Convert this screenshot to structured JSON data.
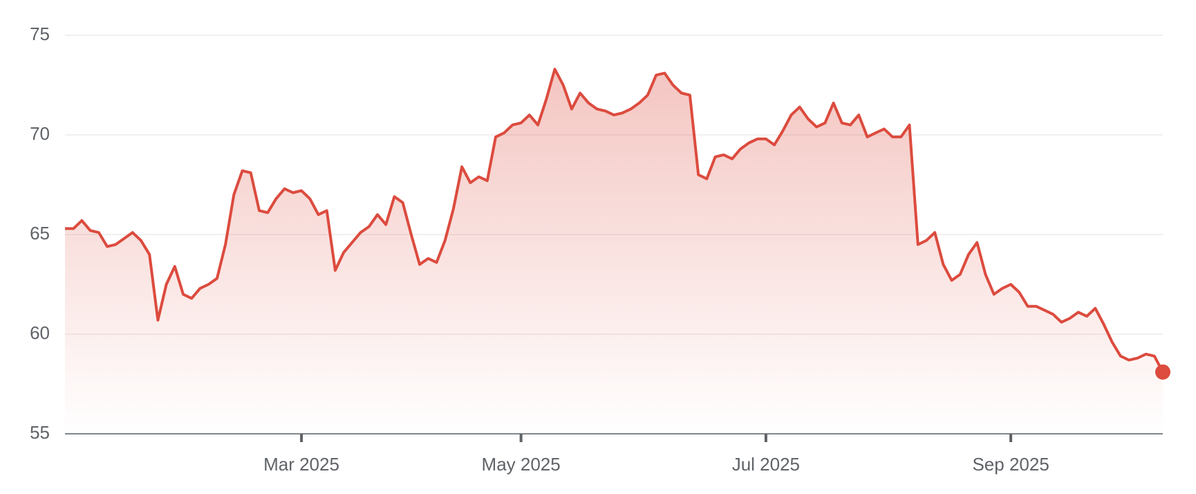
{
  "chart_data": {
    "type": "line",
    "categories": [
      null,
      null,
      null,
      null,
      null,
      null,
      null,
      null,
      null,
      null,
      null,
      null,
      null,
      null,
      null,
      null,
      null,
      null,
      null,
      null,
      null,
      null,
      null,
      null,
      null,
      null,
      null,
      null,
      "Mar 2025",
      null,
      null,
      null,
      null,
      null,
      null,
      null,
      null,
      null,
      null,
      null,
      null,
      null,
      null,
      null,
      null,
      null,
      null,
      null,
      null,
      null,
      null,
      null,
      null,
      null,
      "May 2025",
      null,
      null,
      null,
      null,
      null,
      null,
      null,
      null,
      null,
      null,
      null,
      null,
      null,
      null,
      null,
      null,
      null,
      null,
      null,
      null,
      null,
      null,
      null,
      null,
      null,
      null,
      null,
      null,
      "Jul 2025",
      null,
      null,
      null,
      null,
      null,
      null,
      null,
      null,
      null,
      null,
      null,
      null,
      null,
      null,
      null,
      null,
      null,
      null,
      null,
      null,
      null,
      null,
      null,
      null,
      null,
      null,
      null,
      null,
      "Sep 2025",
      null,
      null,
      null,
      null,
      null,
      null,
      null,
      null,
      null,
      null,
      null,
      null,
      null,
      null,
      null,
      null,
      null,
      null
    ],
    "values": [
      65.3,
      65.3,
      65.7,
      65.2,
      65.1,
      64.4,
      64.5,
      64.8,
      65.1,
      64.7,
      64.0,
      60.7,
      62.5,
      63.4,
      62.0,
      61.8,
      62.3,
      62.5,
      62.8,
      64.5,
      67.0,
      68.2,
      68.1,
      66.2,
      66.1,
      66.8,
      67.3,
      67.1,
      67.2,
      66.8,
      66.0,
      66.2,
      63.2,
      64.1,
      64.6,
      65.1,
      65.4,
      66.0,
      65.5,
      66.9,
      66.6,
      65.0,
      63.5,
      63.8,
      63.6,
      64.7,
      66.3,
      68.4,
      67.6,
      67.9,
      67.7,
      69.9,
      70.1,
      70.5,
      70.6,
      71.0,
      70.5,
      71.8,
      73.3,
      72.5,
      71.3,
      72.1,
      71.6,
      71.3,
      71.2,
      71.0,
      71.1,
      71.3,
      71.6,
      72.0,
      73.0,
      73.1,
      72.5,
      72.1,
      72.0,
      68.0,
      67.8,
      68.9,
      69.0,
      68.8,
      69.3,
      69.6,
      69.8,
      69.8,
      69.5,
      70.2,
      71.0,
      71.4,
      70.8,
      70.4,
      70.6,
      71.6,
      70.6,
      70.5,
      71.0,
      69.9,
      70.1,
      70.3,
      69.9,
      69.9,
      70.5,
      64.5,
      64.7,
      65.1,
      63.5,
      62.7,
      63.0,
      64.0,
      64.6,
      63.0,
      62.0,
      62.3,
      62.5,
      62.1,
      61.4,
      61.4,
      61.2,
      61.0,
      60.6,
      60.8,
      61.1,
      60.9,
      61.3,
      60.5,
      59.6,
      58.9,
      58.7,
      58.8,
      59.0,
      58.9,
      58.1
    ],
    "color": "#dc4b3e",
    "ylim": [
      55,
      75
    ],
    "yticks": [
      55,
      60,
      65,
      70,
      75
    ],
    "grid": true
  }
}
